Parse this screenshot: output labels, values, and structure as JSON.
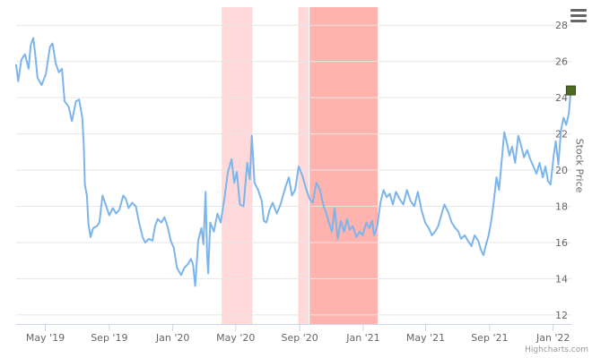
{
  "chart_data": {
    "type": "line",
    "ylabel": "Stock Price",
    "ylim": [
      11.5,
      29
    ],
    "y_ticks": [
      "12",
      "14",
      "16",
      "18",
      "20",
      "22",
      "24",
      "26",
      "28"
    ],
    "xlim": [
      "2019-03-06",
      "2022-02-05"
    ],
    "x_ticks": [
      {
        "date": "2019-05-01",
        "label": "May '19"
      },
      {
        "date": "2019-09-01",
        "label": "Sep '19"
      },
      {
        "date": "2020-01-01",
        "label": "Jan '20"
      },
      {
        "date": "2020-05-01",
        "label": "May '20"
      },
      {
        "date": "2020-09-01",
        "label": "Sep '20"
      },
      {
        "date": "2021-01-01",
        "label": "Jan '21"
      },
      {
        "date": "2021-05-01",
        "label": "May '21"
      },
      {
        "date": "2021-09-01",
        "label": "Sep '21"
      },
      {
        "date": "2022-01-01",
        "label": "Jan '22"
      }
    ],
    "grid": true,
    "line_color": "#7cb5ec",
    "bands": [
      {
        "from": "2020-04-04",
        "to": "2020-06-02",
        "color": "#ffd9d9"
      },
      {
        "from": "2020-08-29",
        "to": "2020-09-18",
        "color": "#ffd9d9"
      },
      {
        "from": "2020-09-20",
        "to": "2021-01-29",
        "color": "#ffb3ae"
      }
    ],
    "marker": {
      "date": "2022-02-04",
      "value": 24.4,
      "color": "#4d6b1f"
    },
    "points": [
      [
        "2019-03-06",
        25.8
      ],
      [
        "2019-03-10",
        24.9
      ],
      [
        "2019-03-16",
        26.1
      ],
      [
        "2019-03-23",
        26.4
      ],
      [
        "2019-03-30",
        25.6
      ],
      [
        "2019-04-03",
        26.9
      ],
      [
        "2019-04-08",
        27.3
      ],
      [
        "2019-04-12",
        26.3
      ],
      [
        "2019-04-16",
        25.1
      ],
      [
        "2019-04-24",
        24.7
      ],
      [
        "2019-05-02",
        25.3
      ],
      [
        "2019-05-10",
        26.8
      ],
      [
        "2019-05-15",
        27.0
      ],
      [
        "2019-05-21",
        25.9
      ],
      [
        "2019-05-27",
        25.4
      ],
      [
        "2019-06-02",
        25.6
      ],
      [
        "2019-06-07",
        23.8
      ],
      [
        "2019-06-15",
        23.5
      ],
      [
        "2019-06-21",
        22.7
      ],
      [
        "2019-06-29",
        23.8
      ],
      [
        "2019-07-05",
        23.9
      ],
      [
        "2019-07-11",
        22.9
      ],
      [
        "2019-07-14",
        21.4
      ],
      [
        "2019-07-16",
        19.2
      ],
      [
        "2019-07-20",
        18.6
      ],
      [
        "2019-07-23",
        17.0
      ],
      [
        "2019-07-27",
        16.3
      ],
      [
        "2019-08-01",
        16.8
      ],
      [
        "2019-08-08",
        16.9
      ],
      [
        "2019-08-13",
        17.1
      ],
      [
        "2019-08-19",
        18.6
      ],
      [
        "2019-08-25",
        18.1
      ],
      [
        "2019-09-01",
        17.5
      ],
      [
        "2019-09-08",
        17.9
      ],
      [
        "2019-09-14",
        17.6
      ],
      [
        "2019-09-20",
        17.8
      ],
      [
        "2019-09-28",
        18.6
      ],
      [
        "2019-10-03",
        18.4
      ],
      [
        "2019-10-08",
        17.9
      ],
      [
        "2019-10-15",
        18.2
      ],
      [
        "2019-10-22",
        18.0
      ],
      [
        "2019-10-29",
        17.0
      ],
      [
        "2019-11-04",
        16.3
      ],
      [
        "2019-11-09",
        16.0
      ],
      [
        "2019-11-16",
        16.2
      ],
      [
        "2019-11-23",
        16.1
      ],
      [
        "2019-11-28",
        16.9
      ],
      [
        "2019-12-03",
        17.3
      ],
      [
        "2019-12-10",
        17.1
      ],
      [
        "2019-12-16",
        17.4
      ],
      [
        "2019-12-22",
        16.9
      ],
      [
        "2019-12-28",
        16.1
      ],
      [
        "2020-01-03",
        15.7
      ],
      [
        "2020-01-09",
        14.6
      ],
      [
        "2020-01-17",
        14.2
      ],
      [
        "2020-01-23",
        14.6
      ],
      [
        "2020-01-30",
        14.8
      ],
      [
        "2020-02-05",
        15.1
      ],
      [
        "2020-02-09",
        14.8
      ],
      [
        "2020-02-13",
        13.6
      ],
      [
        "2020-02-19",
        16.1
      ],
      [
        "2020-02-25",
        16.8
      ],
      [
        "2020-02-29",
        15.9
      ],
      [
        "2020-03-04",
        18.8
      ],
      [
        "2020-03-07",
        15.3
      ],
      [
        "2020-03-09",
        14.3
      ],
      [
        "2020-03-13",
        17.1
      ],
      [
        "2020-03-20",
        16.6
      ],
      [
        "2020-03-27",
        17.6
      ],
      [
        "2020-04-02",
        17.1
      ],
      [
        "2020-04-09",
        18.4
      ],
      [
        "2020-04-16",
        19.9
      ],
      [
        "2020-04-23",
        20.6
      ],
      [
        "2020-04-28",
        19.3
      ],
      [
        "2020-05-03",
        19.9
      ],
      [
        "2020-05-09",
        18.1
      ],
      [
        "2020-05-16",
        18.0
      ],
      [
        "2020-05-23",
        20.4
      ],
      [
        "2020-05-28",
        19.5
      ],
      [
        "2020-06-01",
        21.9
      ],
      [
        "2020-06-06",
        19.3
      ],
      [
        "2020-06-13",
        18.9
      ],
      [
        "2020-06-20",
        18.3
      ],
      [
        "2020-06-24",
        17.2
      ],
      [
        "2020-06-29",
        17.1
      ],
      [
        "2020-07-05",
        17.8
      ],
      [
        "2020-07-11",
        18.2
      ],
      [
        "2020-07-19",
        17.6
      ],
      [
        "2020-07-26",
        18.1
      ],
      [
        "2020-07-31",
        18.6
      ],
      [
        "2020-08-05",
        19.1
      ],
      [
        "2020-08-11",
        19.6
      ],
      [
        "2020-08-17",
        18.6
      ],
      [
        "2020-08-23",
        18.9
      ],
      [
        "2020-08-30",
        20.2
      ],
      [
        "2020-09-06",
        19.7
      ],
      [
        "2020-09-14",
        18.9
      ],
      [
        "2020-09-20",
        18.4
      ],
      [
        "2020-09-26",
        18.2
      ],
      [
        "2020-10-03",
        19.3
      ],
      [
        "2020-10-10",
        18.9
      ],
      [
        "2020-10-16",
        18.1
      ],
      [
        "2020-10-22",
        17.6
      ],
      [
        "2020-10-27",
        17.1
      ],
      [
        "2020-11-02",
        16.6
      ],
      [
        "2020-11-07",
        17.9
      ],
      [
        "2020-11-13",
        16.2
      ],
      [
        "2020-11-19",
        17.2
      ],
      [
        "2020-11-25",
        16.6
      ],
      [
        "2020-12-01",
        17.3
      ],
      [
        "2020-12-06",
        16.7
      ],
      [
        "2020-12-12",
        16.9
      ],
      [
        "2020-12-19",
        16.3
      ],
      [
        "2020-12-25",
        16.6
      ],
      [
        "2020-12-31",
        16.4
      ],
      [
        "2021-01-07",
        17.1
      ],
      [
        "2021-01-13",
        16.8
      ],
      [
        "2021-01-18",
        17.2
      ],
      [
        "2021-01-22",
        16.4
      ],
      [
        "2021-01-28",
        16.9
      ],
      [
        "2021-02-03",
        18.2
      ],
      [
        "2021-02-09",
        18.9
      ],
      [
        "2021-02-15",
        18.5
      ],
      [
        "2021-02-21",
        18.7
      ],
      [
        "2021-02-27",
        18.1
      ],
      [
        "2021-03-05",
        18.8
      ],
      [
        "2021-03-12",
        18.4
      ],
      [
        "2021-03-19",
        18.1
      ],
      [
        "2021-03-26",
        18.9
      ],
      [
        "2021-04-02",
        18.3
      ],
      [
        "2021-04-09",
        18.0
      ],
      [
        "2021-04-16",
        18.8
      ],
      [
        "2021-04-23",
        17.8
      ],
      [
        "2021-04-30",
        17.1
      ],
      [
        "2021-05-07",
        16.8
      ],
      [
        "2021-05-13",
        16.4
      ],
      [
        "2021-05-19",
        16.6
      ],
      [
        "2021-05-25",
        16.9
      ],
      [
        "2021-06-01",
        17.6
      ],
      [
        "2021-06-06",
        18.1
      ],
      [
        "2021-06-13",
        17.7
      ],
      [
        "2021-06-20",
        17.1
      ],
      [
        "2021-06-27",
        16.8
      ],
      [
        "2021-07-03",
        16.6
      ],
      [
        "2021-07-08",
        16.2
      ],
      [
        "2021-07-15",
        16.4
      ],
      [
        "2021-07-21",
        16.1
      ],
      [
        "2021-07-28",
        15.8
      ],
      [
        "2021-08-03",
        16.4
      ],
      [
        "2021-08-10",
        16.1
      ],
      [
        "2021-08-15",
        15.6
      ],
      [
        "2021-08-20",
        15.3
      ],
      [
        "2021-08-25",
        15.9
      ],
      [
        "2021-08-30",
        16.4
      ],
      [
        "2021-09-04",
        17.2
      ],
      [
        "2021-09-09",
        18.3
      ],
      [
        "2021-09-14",
        19.6
      ],
      [
        "2021-09-19",
        18.9
      ],
      [
        "2021-09-24",
        20.5
      ],
      [
        "2021-09-29",
        22.1
      ],
      [
        "2021-10-04",
        21.5
      ],
      [
        "2021-10-09",
        20.8
      ],
      [
        "2021-10-14",
        21.3
      ],
      [
        "2021-10-20",
        20.4
      ],
      [
        "2021-10-26",
        21.9
      ],
      [
        "2021-11-01",
        21.3
      ],
      [
        "2021-11-06",
        20.7
      ],
      [
        "2021-11-12",
        21.1
      ],
      [
        "2021-11-18",
        20.6
      ],
      [
        "2021-11-24",
        20.2
      ],
      [
        "2021-11-30",
        19.8
      ],
      [
        "2021-12-06",
        20.4
      ],
      [
        "2021-12-12",
        19.6
      ],
      [
        "2021-12-17",
        20.2
      ],
      [
        "2021-12-22",
        19.4
      ],
      [
        "2021-12-27",
        19.2
      ],
      [
        "2022-01-02",
        20.8
      ],
      [
        "2022-01-06",
        21.6
      ],
      [
        "2022-01-11",
        20.3
      ],
      [
        "2022-01-16",
        22.2
      ],
      [
        "2022-01-21",
        22.9
      ],
      [
        "2022-01-26",
        22.5
      ],
      [
        "2022-01-31",
        23.1
      ],
      [
        "2022-02-04",
        24.4
      ]
    ]
  },
  "credits": "Highcharts.com"
}
